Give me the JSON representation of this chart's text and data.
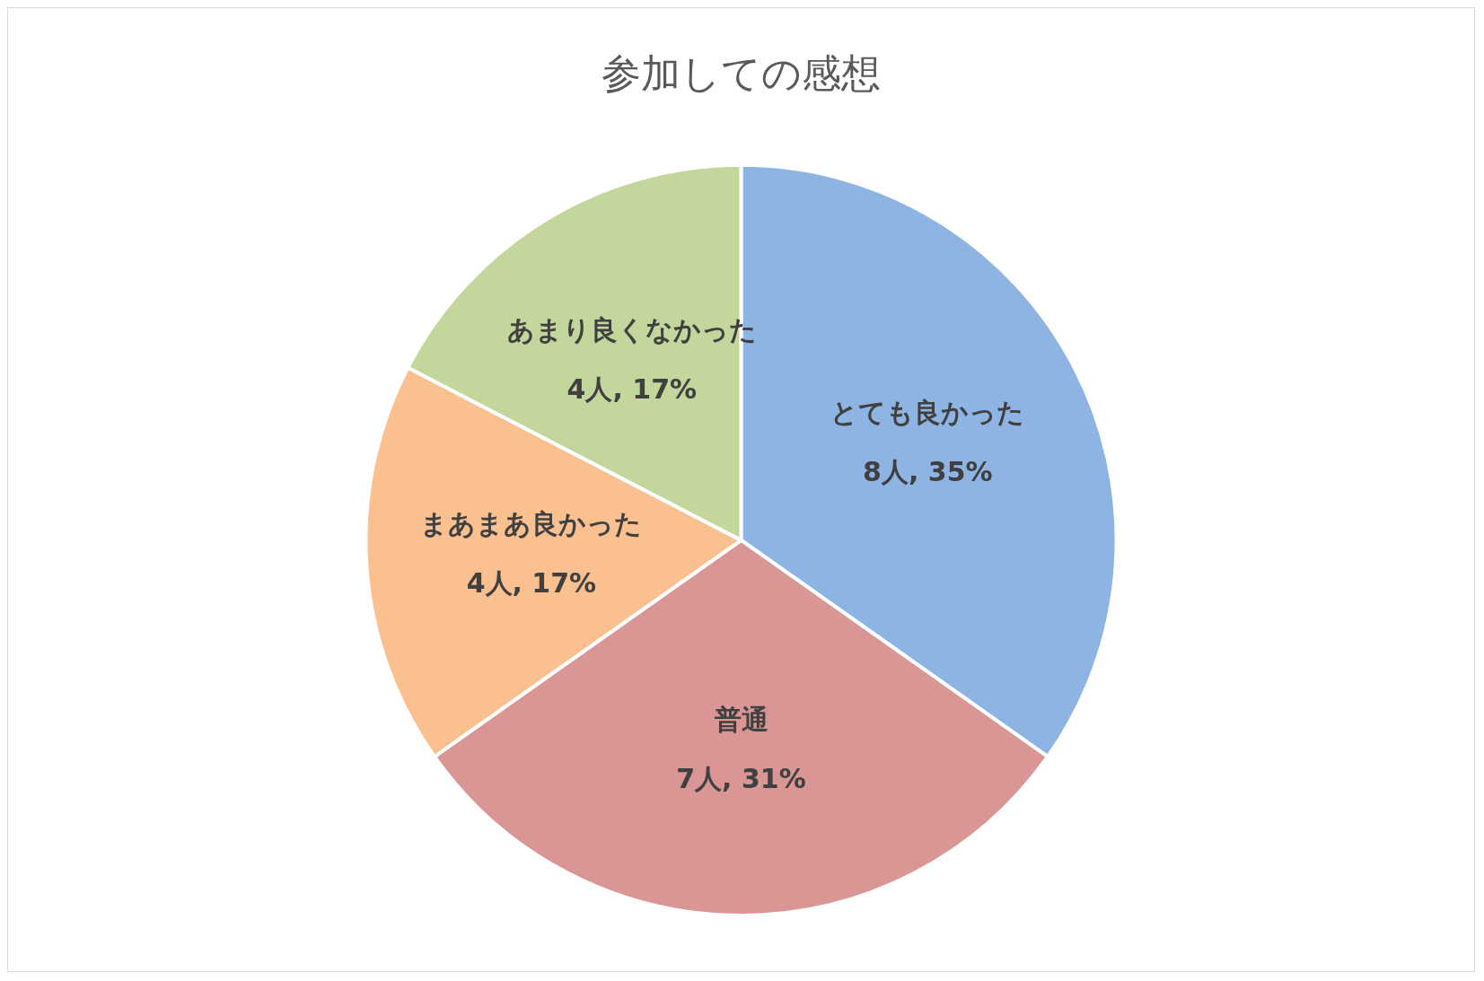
{
  "chart_data": {
    "type": "pie",
    "title": "参加しての感想",
    "categories": [
      "とても良かった",
      "普通",
      "まあまあ良かった",
      "あまり良くなかった"
    ],
    "values": [
      8,
      7,
      4,
      4
    ],
    "colors": [
      "#8eb4e3",
      "#d99694",
      "#fac090",
      "#c3d69b"
    ],
    "value_labels": [
      "8人, 35%",
      "7人, 31%",
      "4人, 17%",
      "4人, 17%"
    ],
    "legend": false
  }
}
